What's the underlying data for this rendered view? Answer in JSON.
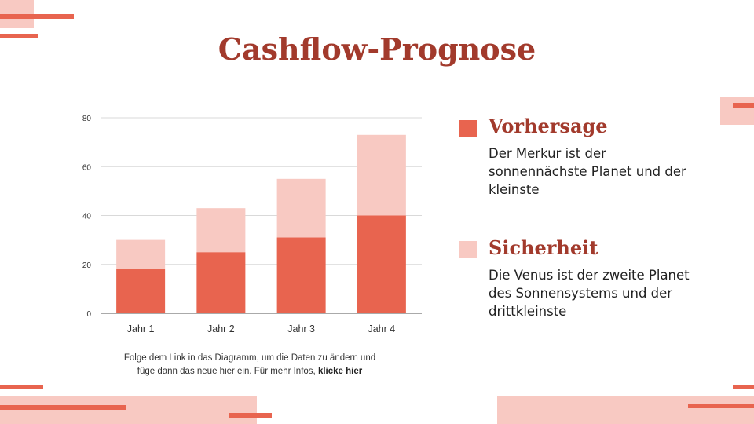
{
  "title": "Cashflow-Prognose",
  "colors": {
    "accent": "#e8644f",
    "light": "#f8c9c2",
    "title": "#a23a2c"
  },
  "chart_data": {
    "type": "bar",
    "stacked": true,
    "categories": [
      "Jahr 1",
      "Jahr 2",
      "Jahr 3",
      "Jahr 4"
    ],
    "series": [
      {
        "name": "Vorhersage",
        "color": "#e8644f",
        "values": [
          18,
          25,
          31,
          40
        ]
      },
      {
        "name": "Sicherheit",
        "color": "#f8c9c2",
        "values": [
          12,
          18,
          24,
          33
        ]
      }
    ],
    "ylim": [
      0,
      80
    ],
    "yticks": [
      0,
      20,
      40,
      60,
      80
    ],
    "grid": true,
    "legend": "right"
  },
  "note": {
    "line1": "Folge dem Link in das Diagramm,  um die Daten zu ändern und",
    "line2": "füge dann das neue hier ein. Für mehr Infos, ",
    "link": "klicke hier"
  },
  "legend": [
    {
      "title": "Vorhersage",
      "desc": "Der Merkur ist der sonnennächste Planet und der kleinste",
      "color": "#e8644f"
    },
    {
      "title": "Sicherheit",
      "desc": "Die Venus ist der zweite Planet des Sonnensystems und der drittkleinste",
      "color": "#f8c9c2"
    }
  ]
}
